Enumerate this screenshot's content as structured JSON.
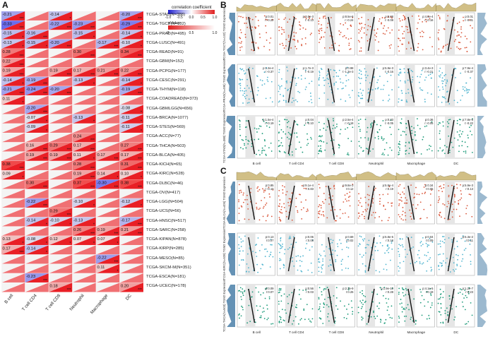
{
  "panel_labels": {
    "a": "A",
    "b": "B",
    "c": "C"
  },
  "legend": {
    "corr_title": "correlation coefficient",
    "corr_ticks": [
      "-1.0",
      "-0.5",
      "0.0",
      "0.5",
      "1.0"
    ],
    "p_title": "pValue",
    "p_ticks": [
      "0",
      "0.5",
      "1.0"
    ],
    "colors": {
      "neg": "#1f1fd0",
      "zero": "#ffffff",
      "pos": "#e02020"
    }
  },
  "heatmap": {
    "columns": [
      "B cell",
      "T cell CD4",
      "T cell CD8",
      "Neutrophil",
      "Macrophage",
      "DC"
    ],
    "rows": [
      "TCGA-STAD(N=388)",
      "TCGA-TGCT(N=132)",
      "TCGA-PRAD(N=495)",
      "TCGA-LUSC(N=491)",
      "TCGA-READ(N=91)",
      "TCGA-GBM(N=152)",
      "TCGA-PCPG(N=177)",
      "TCGA-CESC(N=291)",
      "TCGA-THYM(N=118)",
      "TCGA-COADREAD(N=373)",
      "TCGA-GBMLGG(N=656)",
      "TCGA-BRCA(N=1077)",
      "TCGA-STES(N=569)",
      "TCGA-ACC(N=77)",
      "TCGA-THCA(N=503)",
      "TCGA-BLCA(N=405)",
      "TCGA-KICH(N=65)",
      "TCGA-KIRC(N=528)",
      "TCGA-DLBC(N=46)",
      "TCGA-OV(N=417)",
      "TCGA-LGG(N=504)",
      "TCGA-UCS(N=56)",
      "TCGA-HNSC(N=517)",
      "TCGA-SARC(N=258)",
      "TCGA-KIPAN(N=878)",
      "TCGA-KIRP(N=285)",
      "TCGA-MESO(N=85)",
      "TCGA-SKCM-M(N=351)",
      "TCGA-ESCA(N=181)",
      "TCGA-UCEC(N=178)"
    ],
    "values": [
      [
        -0.21,
        null,
        -0.14,
        null,
        null,
        -0.2
      ],
      [
        -0.33,
        null,
        -0.22,
        -0.23,
        null,
        -0.29
      ],
      [
        -0.15,
        -0.16,
        null,
        -0.15,
        null,
        -0.14
      ],
      [
        -0.13,
        -0.15,
        -0.2,
        null,
        -0.17,
        -0.1
      ],
      [
        0.28,
        null,
        null,
        0.3,
        null,
        0.34
      ],
      [
        0.22,
        null,
        null,
        null,
        null,
        null
      ],
      [
        0.19,
        null,
        0.19,
        0.17,
        0.21,
        0.22
      ],
      [
        -0.14,
        -0.19,
        null,
        -0.13,
        null,
        -0.14
      ],
      [
        -0.21,
        -0.24,
        -0.2,
        null,
        null,
        -0.19
      ],
      [
        0.11,
        null,
        null,
        null,
        null,
        null
      ],
      [
        null,
        -0.2,
        null,
        null,
        null,
        -0.08
      ],
      [
        null,
        -0.07,
        null,
        -0.13,
        null,
        -0.11
      ],
      [
        null,
        -0.09,
        null,
        null,
        null,
        -0.11
      ],
      [
        null,
        null,
        null,
        0.24,
        null,
        null
      ],
      [
        null,
        0.16,
        0.29,
        0.17,
        null,
        0.27
      ],
      [
        null,
        0.19,
        0.19,
        0.11,
        0.17,
        0.17
      ],
      [
        0.38,
        null,
        null,
        0.28,
        null,
        0.31
      ],
      [
        0.09,
        null,
        null,
        0.19,
        0.14,
        0.1
      ],
      [
        null,
        0.3,
        null,
        0.37,
        -0.3,
        0.38
      ],
      [
        null,
        null,
        null,
        null,
        null,
        null
      ],
      [
        null,
        -0.22,
        null,
        -0.1,
        null,
        -0.12
      ],
      [
        null,
        null,
        0.29,
        null,
        null,
        null
      ],
      [
        null,
        -0.14,
        -0.1,
        -0.13,
        null,
        -0.17
      ],
      [
        null,
        null,
        null,
        0.26,
        0.19,
        0.21
      ],
      [
        0.13,
        -0.08,
        0.12,
        0.07,
        0.07,
        null
      ],
      [
        0.17,
        -0.14,
        null,
        null,
        null,
        null
      ],
      [
        null,
        null,
        null,
        null,
        -0.22,
        null
      ],
      [
        null,
        null,
        null,
        null,
        0.11,
        null
      ],
      [
        null,
        -0.23,
        null,
        null,
        null,
        null
      ],
      [
        null,
        null,
        0.18,
        null,
        null,
        0.2
      ]
    ]
  },
  "scatter_panels": {
    "b": [
      {
        "ylabel": "TCGA-TGCT(N=132) TGM2 Expression",
        "color": "#d9563a",
        "cells": [
          [
            "p:0.01",
            "r:-0.22"
          ],
          [
            "p:3.0e-3",
            "r:-0.13"
          ],
          [
            "p:8.5e-8",
            "r:-0.24"
          ],
          [
            "p:0.08",
            "r:-0.08"
          ],
          [
            "p:4.6e-4",
            "r:-0.16"
          ],
          [
            "p:0.01",
            "r:-0.31"
          ]
        ]
      },
      {
        "ylabel": "TCGA-PRAD(N=495) TGM2 Expression",
        "color": "#4fb4cf",
        "cells": [
          [
            "p:1.3e-4",
            "r:-0.37"
          ],
          [
            "p:1.7e-3",
            "r:-0.19"
          ],
          [
            "p:0.98",
            "r:-1.3e-3"
          ],
          [
            "p:5.9e-3",
            "r:-0.16"
          ],
          [
            "p:3.4e-3",
            "r:-0.21"
          ],
          [
            "p:7.9e-4",
            "r:-0.37"
          ]
        ]
      },
      {
        "ylabel": "TCGA-STAD(N=388) TGM2 Expression",
        "color": "#1c9a79",
        "cells": [
          [
            "p:1.5e-4",
            "r:-0.19"
          ],
          [
            "p:0.04",
            "r:-0.10"
          ],
          [
            "p:2.5e-4",
            "r:-0.18"
          ],
          [
            "p:0.33",
            "r:-0.05"
          ],
          [
            "p:0.36",
            "r:-0.05"
          ],
          [
            "p:7.8e-6",
            "r:-0.22"
          ]
        ]
      }
    ],
    "c": [
      {
        "ylabel": "TCGA-BLCA(N=405) TGM2 Expression",
        "color": "#d9563a",
        "cells": [
          [
            "p:0.85",
            "r:-0.10"
          ],
          [
            "p:9.1e-4",
            "r:0.83"
          ],
          [
            "p:9.8e-3",
            "r:0.12"
          ],
          [
            "p:5.9e-4",
            "r:0.19"
          ],
          [
            "p:0.34",
            "r:0.05"
          ],
          [
            "p:5.9e-3",
            "r:0.13"
          ]
        ]
      },
      {
        "ylabel": "TCGA-KIRC(N=528) TGM2 Expression",
        "color": "#4fb4cf",
        "cells": [
          [
            "p:0.13",
            "r:0.07"
          ],
          [
            "p:0.06",
            "r:0.08"
          ],
          [
            "p:0.69",
            "r:0.02"
          ],
          [
            "p:5.8e-5",
            "r:0.18"
          ],
          [
            "p:0.04",
            "r:0.09"
          ],
          [
            "p:5.3e-2",
            "r:0.11"
          ]
        ]
      },
      {
        "ylabel": "TCGA-THCA(N=503) TGM2 Expression",
        "color": "#1c9a79",
        "cells": [
          [
            "p:0.09",
            "r:0.07"
          ],
          [
            "p:0.56",
            "r:0.03"
          ],
          [
            "p:2.2e-9",
            "r:0.26"
          ],
          [
            "p:1.9e-10",
            "r:0.28"
          ],
          [
            "p:4.1e-5",
            "r:0.19"
          ],
          [
            "p:1.2e-7",
            "r:0.23"
          ]
        ]
      }
    ],
    "xlabels": [
      "B cell",
      "T cell CD4",
      "T cell CD8",
      "Neutrophil",
      "Macrophage",
      "DC"
    ],
    "density_colors": {
      "top_b": "#c6b068",
      "right_b": "#4a7fa8",
      "top_c": "#c6b068",
      "right_c": "#4a7fa8"
    }
  }
}
